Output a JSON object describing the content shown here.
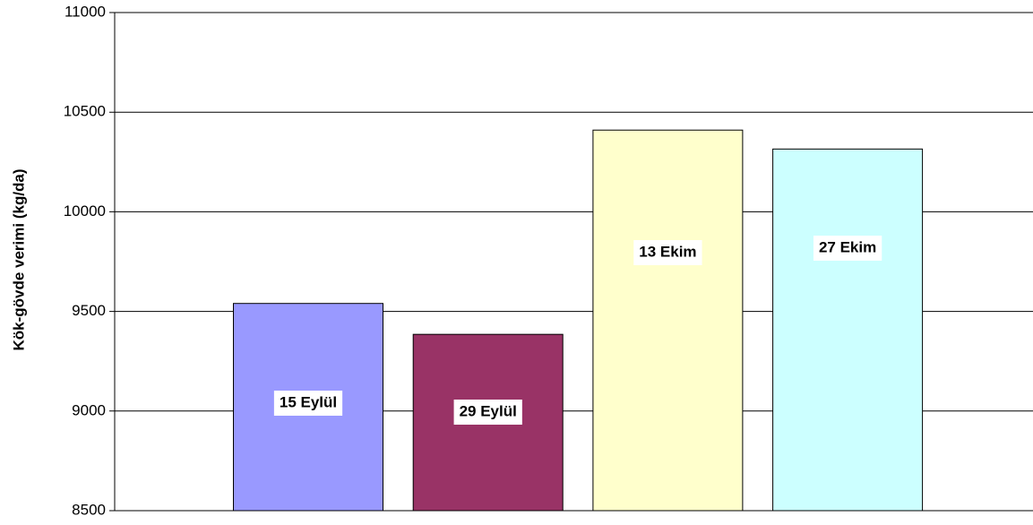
{
  "chart_data": {
    "type": "bar",
    "y_axis_label": "Kök-gövde verimi (kg/da)",
    "categories": [
      "15 Eylül",
      "29 Eylül",
      "13 Ekim",
      "27 Ekim"
    ],
    "values": [
      9540,
      9385,
      10410,
      10315
    ],
    "colors": [
      "#9999ff",
      "#993366",
      "#ffffcc",
      "#ccffff"
    ],
    "ylim": [
      8500,
      11000
    ],
    "yticks": [
      8500,
      9000,
      9500,
      10000,
      10500,
      11000
    ],
    "grid": true
  }
}
